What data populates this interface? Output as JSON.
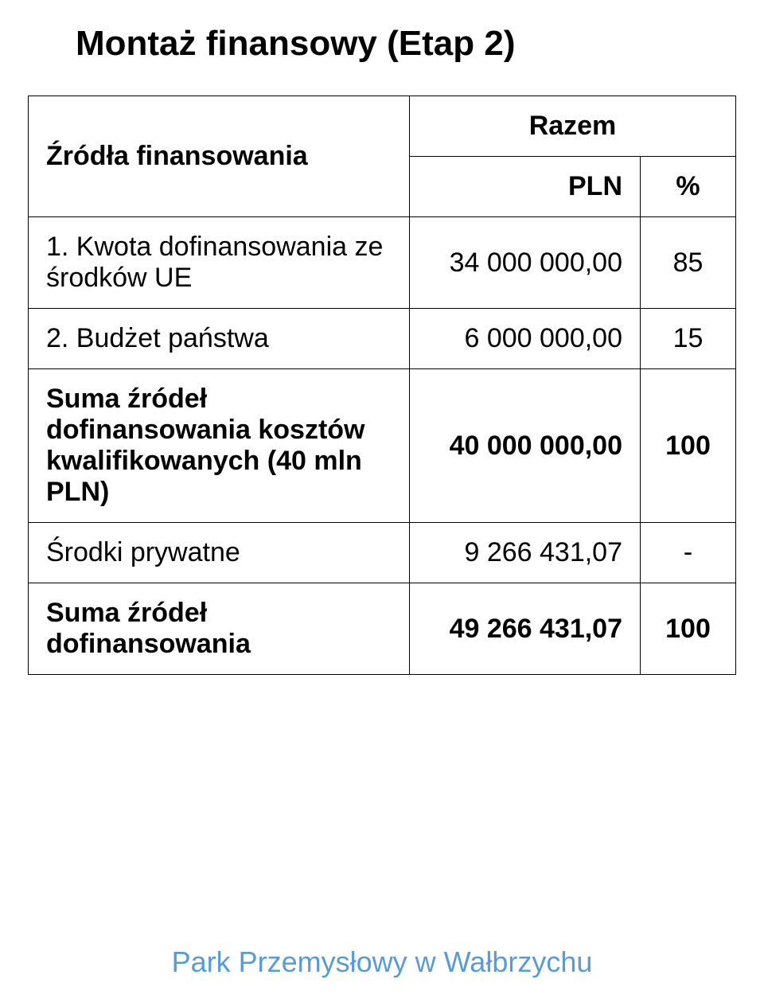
{
  "page": {
    "title": "Montaż finansowy (Etap 2)",
    "footer_text": "Park Przemysłowy w Wałbrzychu",
    "footer_color": "#5A9BD5",
    "font_family": "Arial",
    "border_color": "#000000",
    "background_color": "#ffffff"
  },
  "table": {
    "header": {
      "sources_label": "Źródła finansowania",
      "razem_label": "Razem",
      "pln_label": "PLN",
      "percent_label": "%"
    },
    "rows": [
      {
        "label": "1. Kwota dofinansowania ze środków UE",
        "pln": "34 000 000,00",
        "percent": "85",
        "bold": false
      },
      {
        "label": "2. Budżet państwa",
        "pln": "6 000 000,00",
        "percent": "15",
        "bold": false
      },
      {
        "label": "Suma źródeł dofinansowania kosztów kwalifikowanych (40 mln PLN)",
        "pln": "40 000 000,00",
        "percent": "100",
        "bold": true
      },
      {
        "label": "Środki prywatne",
        "pln": "9 266 431,07",
        "percent": "-",
        "bold": false
      },
      {
        "label": "Suma źródeł dofinansowania",
        "pln": "49 266 431,07",
        "percent": "100",
        "bold": true
      }
    ]
  }
}
